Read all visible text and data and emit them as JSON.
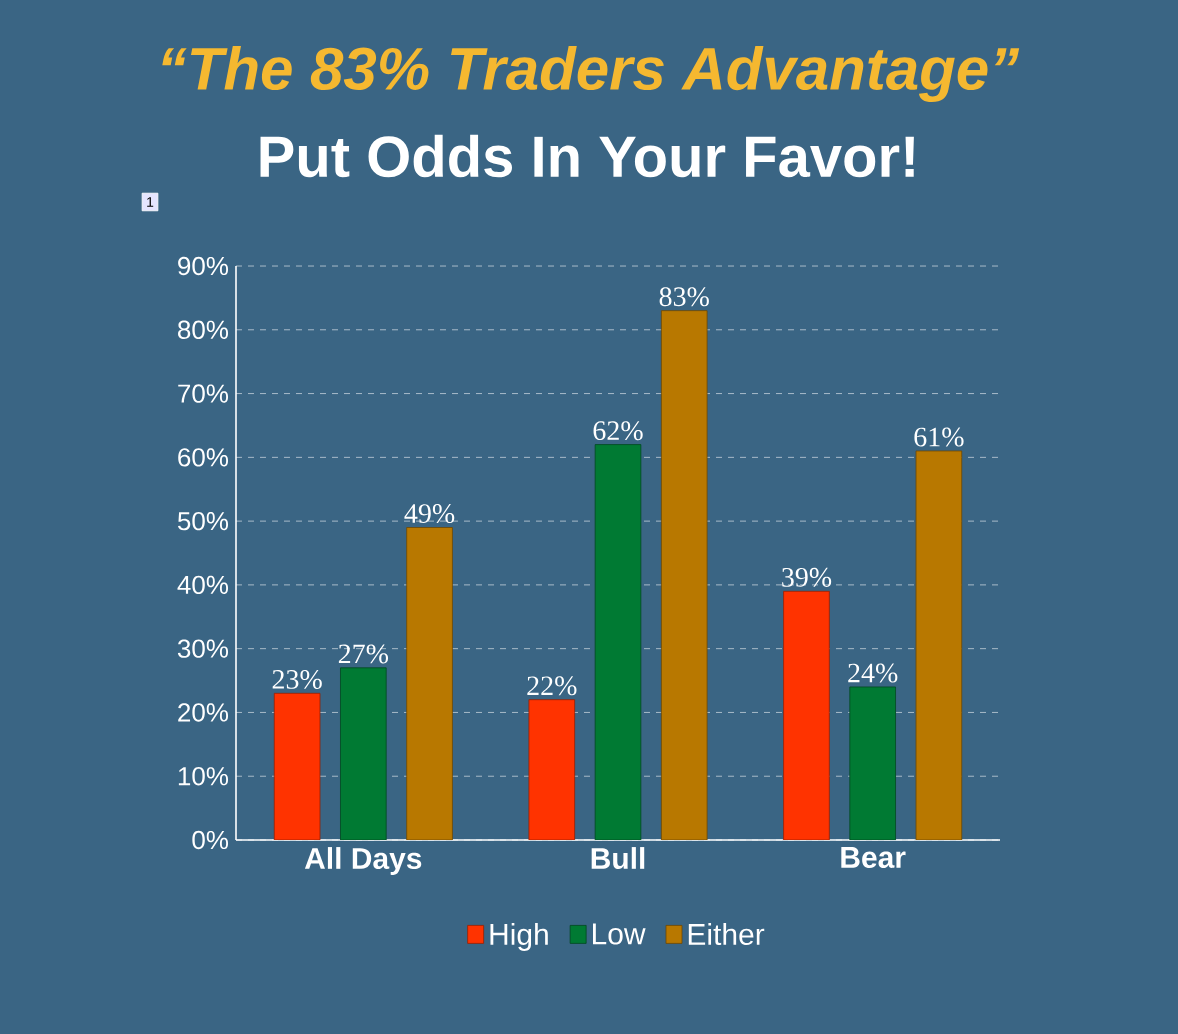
{
  "chart_data": {
    "type": "bar",
    "title": "“The 83% Traders Advantage”",
    "subtitle": "Put Odds In Your Favor!",
    "categories": [
      "All Days",
      "Bull",
      "Bear"
    ],
    "series": [
      {
        "name": "High",
        "color": "#ff3300",
        "values": [
          23,
          22,
          39
        ],
        "value_labels": [
          "23%",
          "22%",
          "39%"
        ]
      },
      {
        "name": "Low",
        "color": "#007a33",
        "values": [
          27,
          62,
          24
        ],
        "value_labels": [
          "27%",
          "62%",
          "24%"
        ]
      },
      {
        "name": "Either",
        "color": "#b87800",
        "values": [
          49,
          83,
          61
        ],
        "value_labels": [
          "49%",
          "83%",
          "61%"
        ]
      }
    ],
    "ylim": [
      0,
      90
    ],
    "yticks": [
      {
        "value": 0,
        "label": "0%"
      },
      {
        "value": 10,
        "label": "10%"
      },
      {
        "value": 20,
        "label": "20%"
      },
      {
        "value": 30,
        "label": "30%"
      },
      {
        "value": 40,
        "label": "40%"
      },
      {
        "value": 50,
        "label": "50%"
      },
      {
        "value": 60,
        "label": "60%"
      },
      {
        "value": 70,
        "label": "70%"
      },
      {
        "value": 80,
        "label": "80%"
      },
      {
        "value": 90,
        "label": "90%"
      }
    ],
    "grid": "y",
    "legend": "bottom",
    "annotations": [
      "1"
    ]
  }
}
